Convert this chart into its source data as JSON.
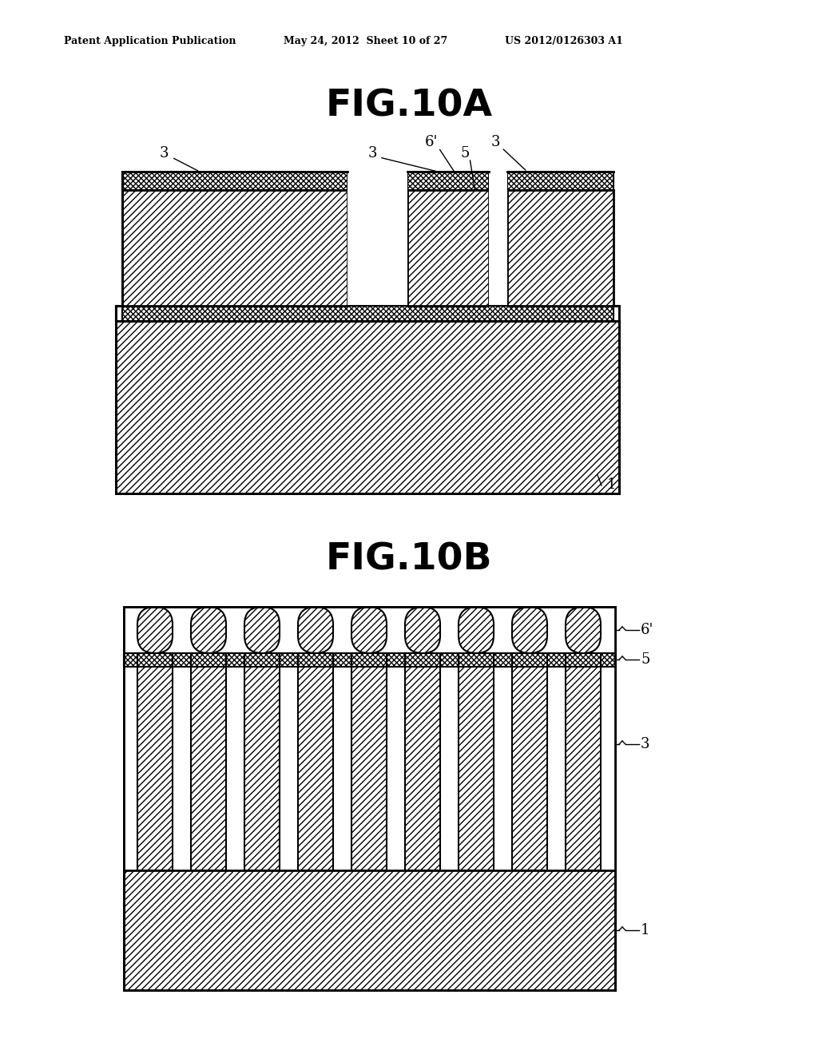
{
  "header_left": "Patent Application Publication",
  "header_mid": "May 24, 2012  Sheet 10 of 27",
  "header_right": "US 2012/0126303 A1",
  "title_a": "FIG.10A",
  "title_b": "FIG.10B",
  "bg_color": "#ffffff"
}
